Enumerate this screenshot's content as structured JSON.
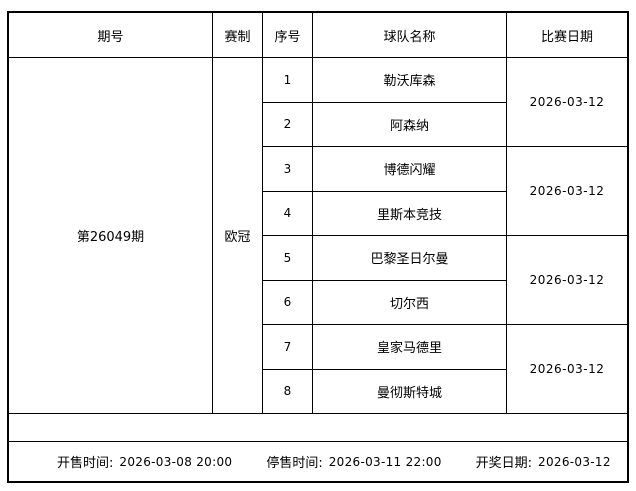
{
  "table": {
    "headers": {
      "period": "期号",
      "format": "赛制",
      "serial": "序号",
      "team": "球队名称",
      "date": "比赛日期"
    },
    "period": "第26049期",
    "format": "欧冠",
    "rows": [
      {
        "no": "1",
        "team": "勒沃库森"
      },
      {
        "no": "2",
        "team": "阿森纳"
      },
      {
        "no": "3",
        "team": "博德闪耀"
      },
      {
        "no": "4",
        "team": "里斯本竞技"
      },
      {
        "no": "5",
        "team": "巴黎圣日尔曼"
      },
      {
        "no": "6",
        "team": "切尔西"
      },
      {
        "no": "7",
        "team": "皇家马德里"
      },
      {
        "no": "8",
        "team": "曼彻斯特城"
      }
    ],
    "dates": [
      "2026-03-12",
      "2026-03-12",
      "2026-03-12",
      "2026-03-12"
    ]
  },
  "footer": {
    "sale_start_label": "开售时间:",
    "sale_start_value": "2026-03-08 20:00",
    "sale_stop_label": "停售时间:",
    "sale_stop_value": "2026-03-11 22:00",
    "draw_date_label": "开奖日期:",
    "draw_date_value": "2026-03-12"
  },
  "colors": {
    "border": "#000000",
    "background": "#ffffff",
    "text": "#000000"
  }
}
